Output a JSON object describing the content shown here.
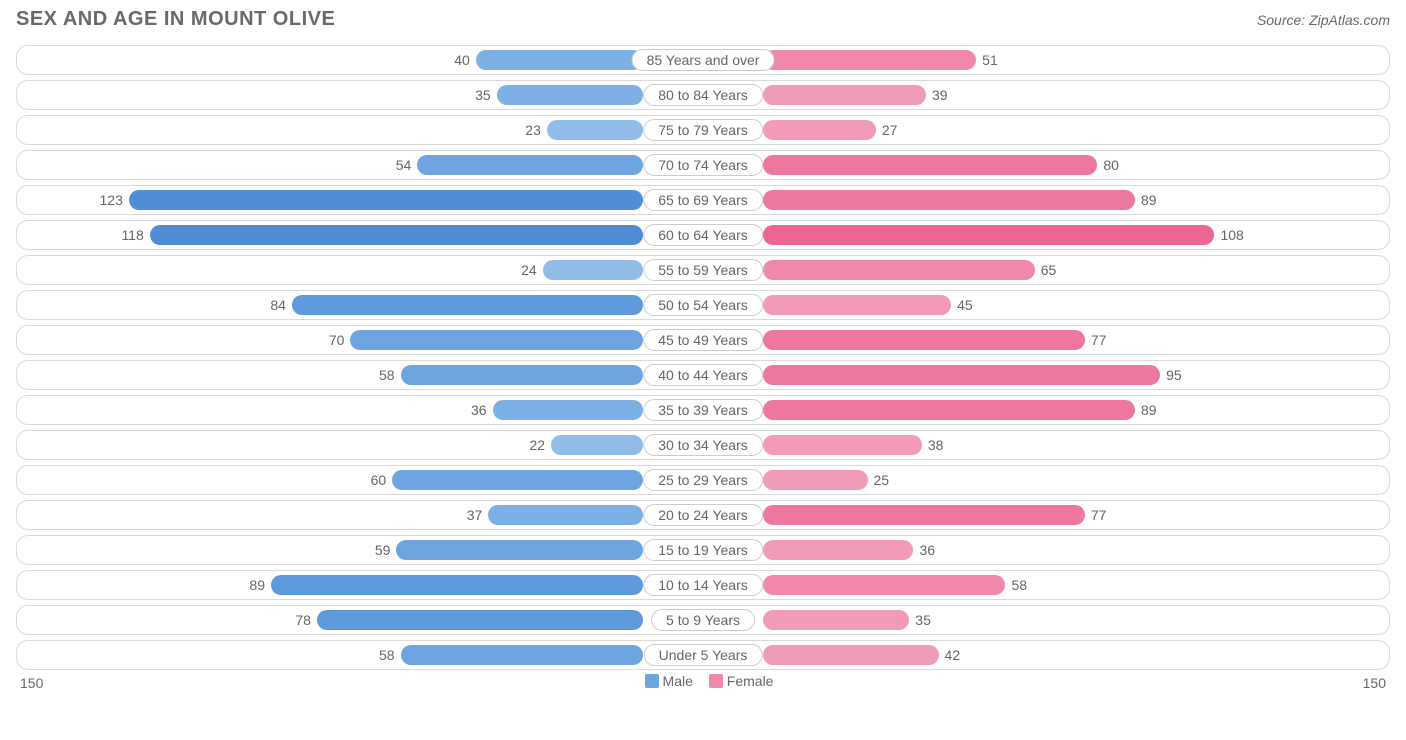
{
  "title": "SEX AND AGE IN MOUNT OLIVE",
  "source": "Source: ZipAtlas.com",
  "title_color": "#696969",
  "source_color": "#696969",
  "axis_max": 150,
  "axis_label": "150",
  "legend": {
    "male": "Male",
    "female": "Female"
  },
  "colors": {
    "male_base": "#6ea5e0",
    "female_base": "#f088ad",
    "row_border": "#d9d9d9",
    "label_border": "#cccccc",
    "text": "#666666",
    "value_inside": "#ffffff",
    "background": "#ffffff"
  },
  "male_shades": [
    "#91bce8",
    "#7db0e4",
    "#6ea5e0",
    "#5e99db",
    "#4f8dd6",
    "#4b89d4"
  ],
  "female_shades": [
    "#f4a6c2",
    "#f29ab9",
    "#f088ad",
    "#ee77a1",
    "#ec6594",
    "#ea5f90"
  ],
  "rows": [
    {
      "label": "85 Years and over",
      "male": 40,
      "female": 51
    },
    {
      "label": "80 to 84 Years",
      "male": 35,
      "female": 39
    },
    {
      "label": "75 to 79 Years",
      "male": 23,
      "female": 27
    },
    {
      "label": "70 to 74 Years",
      "male": 54,
      "female": 80
    },
    {
      "label": "65 to 69 Years",
      "male": 123,
      "female": 89
    },
    {
      "label": "60 to 64 Years",
      "male": 118,
      "female": 108
    },
    {
      "label": "55 to 59 Years",
      "male": 24,
      "female": 65
    },
    {
      "label": "50 to 54 Years",
      "male": 84,
      "female": 45
    },
    {
      "label": "45 to 49 Years",
      "male": 70,
      "female": 77
    },
    {
      "label": "40 to 44 Years",
      "male": 58,
      "female": 95
    },
    {
      "label": "35 to 39 Years",
      "male": 36,
      "female": 89
    },
    {
      "label": "30 to 34 Years",
      "male": 22,
      "female": 38
    },
    {
      "label": "25 to 29 Years",
      "male": 60,
      "female": 25
    },
    {
      "label": "20 to 24 Years",
      "male": 37,
      "female": 77
    },
    {
      "label": "15 to 19 Years",
      "male": 59,
      "female": 36
    },
    {
      "label": "10 to 14 Years",
      "male": 89,
      "female": 58
    },
    {
      "label": "5 to 9 Years",
      "male": 78,
      "female": 35
    },
    {
      "label": "Under 5 Years",
      "male": 58,
      "female": 42
    }
  ]
}
